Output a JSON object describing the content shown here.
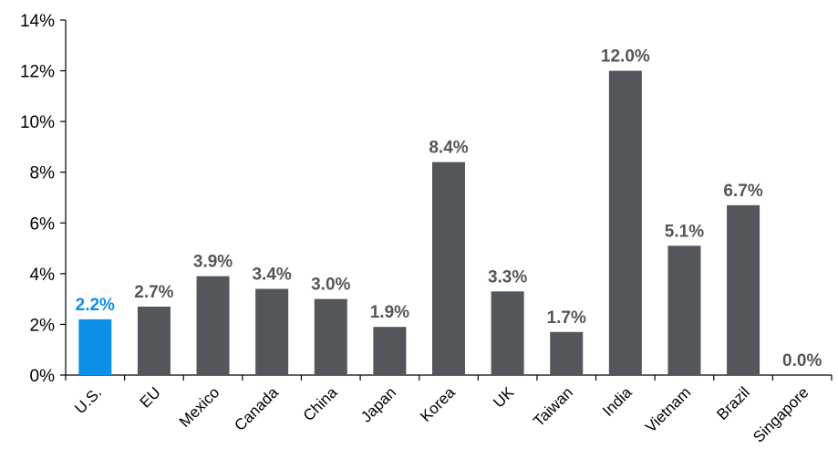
{
  "chart_data": {
    "type": "bar",
    "categories": [
      "U.S.",
      "EU",
      "Mexico",
      "Canada",
      "China",
      "Japan",
      "Korea",
      "UK",
      "Taiwan",
      "India",
      "Vietnam",
      "Brazil",
      "Singapore"
    ],
    "values": [
      2.2,
      2.7,
      3.9,
      3.4,
      3.0,
      1.9,
      8.4,
      3.3,
      1.7,
      12.0,
      5.1,
      6.7,
      0.0
    ],
    "data_labels": [
      "2.2%",
      "2.7%",
      "3.9%",
      "3.4%",
      "3.0%",
      "1.9%",
      "8.4%",
      "3.3%",
      "1.7%",
      "12.0%",
      "5.1%",
      "6.7%",
      "0.0%"
    ],
    "y_ticks": [
      0,
      2,
      4,
      6,
      8,
      10,
      12,
      14
    ],
    "y_tick_labels": [
      "0%",
      "2%",
      "4%",
      "6%",
      "8%",
      "10%",
      "12%",
      "14%"
    ],
    "ylim": [
      0,
      14
    ],
    "highlight_index": 0,
    "grid": false,
    "legend": "none",
    "colors": {
      "bar": "#53565a",
      "highlight": "#0d8fe8",
      "axis": "#000000",
      "label": "#53565a"
    }
  }
}
